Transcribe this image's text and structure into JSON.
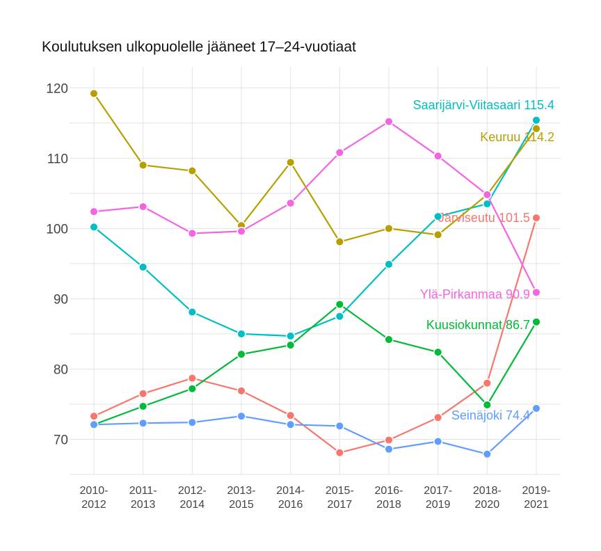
{
  "title": "Koulutuksen ulkopuolelle jääneet 17–24-vuotiaat",
  "chart_data": {
    "type": "line",
    "title": "Koulutuksen ulkopuolelle jääneet 17–24-vuotiaat",
    "xlabel": "",
    "ylabel": "",
    "categories": [
      [
        "2010-",
        "2012"
      ],
      [
        "2011-",
        "2013"
      ],
      [
        "2012-",
        "2014"
      ],
      [
        "2013-",
        "2015"
      ],
      [
        "2014-",
        "2016"
      ],
      [
        "2015-",
        "2017"
      ],
      [
        "2016-",
        "2018"
      ],
      [
        "2017-",
        "2019"
      ],
      [
        "2018-",
        "2020"
      ],
      [
        "2019-",
        "2021"
      ]
    ],
    "ylim": [
      65,
      123
    ],
    "yticks": [
      70,
      80,
      90,
      100,
      110,
      120
    ],
    "grid": true,
    "legend": "direct labels at series ends",
    "series": [
      {
        "name": "Saarijärvi-Viitasaari",
        "label": "Saarijärvi-Viitasaari 115.4",
        "color": "#00bfc4",
        "values": [
          100.2,
          94.5,
          88.1,
          85.0,
          84.7,
          87.5,
          94.9,
          101.7,
          103.5,
          115.4
        ]
      },
      {
        "name": "Keuruu",
        "label": "Keuruu 114.2",
        "color": "#b79f00",
        "values": [
          119.2,
          109.0,
          108.2,
          100.4,
          109.4,
          98.1,
          100.0,
          99.1,
          104.8,
          114.2
        ]
      },
      {
        "name": "Järviseutu",
        "label": "Järviseutu 101.5",
        "color": "#f8766d",
        "values": [
          73.3,
          76.5,
          78.7,
          76.9,
          73.4,
          68.1,
          69.9,
          73.1,
          78.0,
          101.5
        ]
      },
      {
        "name": "Ylä-Pirkanmaa",
        "label": "Ylä-Pirkanmaa 90.9",
        "color": "#f564e3",
        "values": [
          102.4,
          103.1,
          99.3,
          99.6,
          103.6,
          110.8,
          115.2,
          110.3,
          104.8,
          90.9
        ]
      },
      {
        "name": "Kuusiokunnat",
        "label": "Kuusiokunnat 86.7",
        "color": "#00ba38",
        "values": [
          72.1,
          74.7,
          77.2,
          82.1,
          83.4,
          89.2,
          84.2,
          82.4,
          74.9,
          86.7
        ]
      },
      {
        "name": "Seinäjoki",
        "label": "Seinäjoki 74.4",
        "color": "#619cff",
        "values": [
          72.1,
          72.3,
          72.4,
          73.3,
          72.1,
          71.9,
          68.6,
          69.7,
          67.9,
          74.4
        ]
      }
    ]
  }
}
